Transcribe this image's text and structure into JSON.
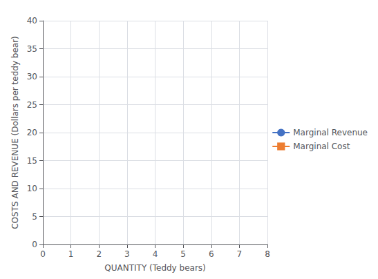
{
  "chart_data": {
    "type": "line",
    "xlabel": "QUANTITY (Teddy bears)",
    "ylabel": "COSTS AND REVENUE (Dollars per teddy bear)",
    "x": [],
    "series": [
      {
        "name": "Marginal Revenue",
        "color": "#4472C4",
        "marker": "circle",
        "values": []
      },
      {
        "name": "Marginal Cost",
        "color": "#ED7D31",
        "marker": "square",
        "values": []
      }
    ],
    "xlim": [
      0,
      8
    ],
    "xticks": [
      0,
      1,
      2,
      3,
      4,
      5,
      6,
      7,
      8
    ],
    "ylim": [
      0,
      40
    ],
    "yticks": [
      0,
      5,
      10,
      15,
      20,
      25,
      30,
      35,
      40
    ],
    "grid": true,
    "legend": "right"
  }
}
